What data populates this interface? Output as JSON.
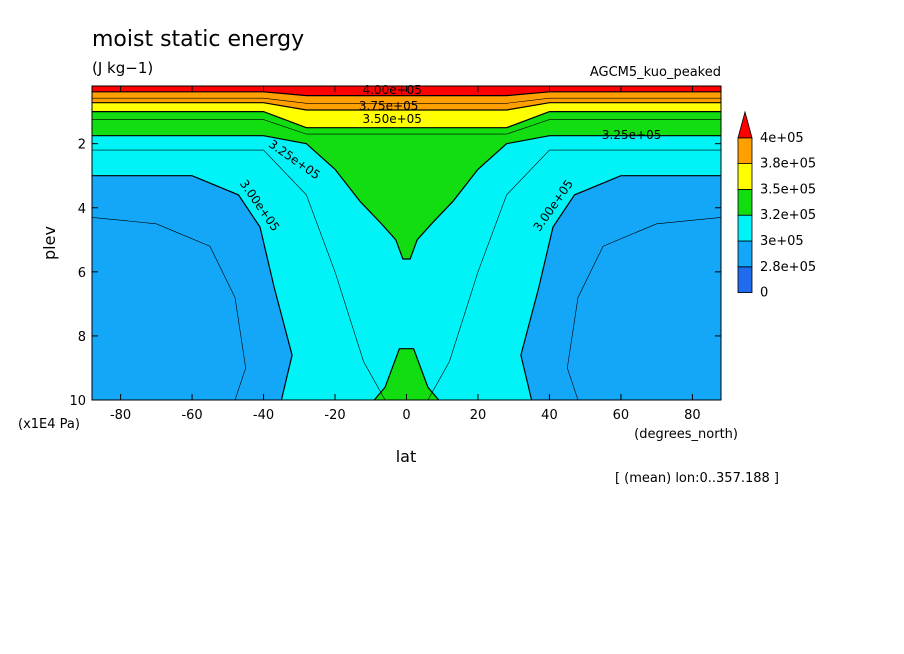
{
  "chart_data": {
    "type": "heatmap",
    "title": "moist static energy",
    "units": "(J kg−1)",
    "run_label": "AGCM5_kuo_peaked",
    "xlabel": "lat",
    "ylabel": "plev",
    "x_unit": "(degrees_north)",
    "y_unit": "(x1E4 Pa)",
    "footer": "[ (mean) lon:0..357.188 ]",
    "xlim": [
      -88,
      88
    ],
    "ylim": [
      0.2,
      10
    ],
    "y_inverted": true,
    "x_ticks": [
      "-80",
      "-60",
      "-40",
      "-20",
      "0",
      "20",
      "40",
      "60",
      "80"
    ],
    "y_ticks": [
      "2",
      "4",
      "6",
      "8",
      "10"
    ],
    "x_tick_values": [
      -80,
      -60,
      -40,
      -20,
      0,
      20,
      40,
      60,
      80
    ],
    "y_tick_values": [
      2,
      4,
      6,
      8,
      10
    ],
    "colorbar": {
      "labels": [
        "0",
        "2.8e+05",
        "3e+05",
        "3.2e+05",
        "3.5e+05",
        "3.8e+05",
        "4e+05"
      ],
      "colors": [
        "#1f6cf0",
        "#14a6f7",
        "#00f4f7",
        "#11dd11",
        "#ffff00",
        "#ff9f00",
        "#ff0000"
      ]
    },
    "regions": [
      {
        "band": "2.8e+05–3e+05",
        "color": "#14a6f7",
        "points": [
          [
            -88,
            3.0
          ],
          [
            -60,
            3.0
          ],
          [
            -47,
            3.6
          ],
          [
            -41,
            4.6
          ],
          [
            -37,
            6.5
          ],
          [
            -32,
            8.6
          ],
          [
            -35,
            10
          ]
        ],
        "close_to": "south"
      },
      {
        "band": "2.8e+05–3e+05",
        "color": "#14a6f7",
        "points": [
          [
            88,
            3.0
          ],
          [
            60,
            3.0
          ],
          [
            47,
            3.6
          ],
          [
            41,
            4.6
          ],
          [
            37,
            6.5
          ],
          [
            32,
            8.6
          ],
          [
            35,
            10
          ]
        ],
        "close_to": "north"
      },
      {
        "band": "3.2e+05–3.5e+05",
        "color": "#11dd11",
        "points": [
          [
            -88,
            1.75
          ],
          [
            -40,
            1.75
          ],
          [
            -28,
            2.0
          ],
          [
            -20,
            2.8
          ],
          [
            -13,
            3.8
          ],
          [
            -7,
            4.5
          ],
          [
            -3,
            5.0
          ],
          [
            -1,
            5.6
          ],
          [
            1,
            5.6
          ],
          [
            3,
            5.0
          ],
          [
            7,
            4.5
          ],
          [
            13,
            3.8
          ],
          [
            20,
            2.8
          ],
          [
            28,
            2.0
          ],
          [
            40,
            1.75
          ],
          [
            88,
            1.75
          ]
        ],
        "close_to": "top"
      },
      {
        "band": "3.2e+05–3.5e+05",
        "color": "#11dd11",
        "points": [
          [
            -9,
            10
          ],
          [
            -6,
            9.6
          ],
          [
            -2,
            8.4
          ],
          [
            2,
            8.4
          ],
          [
            6,
            9.6
          ],
          [
            9,
            10
          ]
        ],
        "close_to": "none"
      },
      {
        "band": "3.5e+05–3.8e+05",
        "color": "#ffff00",
        "points": [
          [
            -88,
            1.0
          ],
          [
            -40,
            1.0
          ],
          [
            -28,
            1.5
          ],
          [
            28,
            1.5
          ],
          [
            40,
            1.0
          ],
          [
            88,
            1.0
          ]
        ],
        "close_to": "top"
      },
      {
        "band": "3.8e+05–4e+05",
        "color": "#ff9f00",
        "points": [
          [
            -88,
            0.72
          ],
          [
            -40,
            0.72
          ],
          [
            -28,
            0.95
          ],
          [
            28,
            0.95
          ],
          [
            40,
            0.72
          ],
          [
            88,
            0.72
          ]
        ],
        "close_to": "top"
      },
      {
        "band": ">4e+05",
        "color": "#ff0000",
        "points": [
          [
            -88,
            0.38
          ],
          [
            -40,
            0.38
          ],
          [
            -28,
            0.5
          ],
          [
            28,
            0.5
          ],
          [
            40,
            0.38
          ],
          [
            88,
            0.38
          ]
        ],
        "close_to": "top"
      }
    ],
    "contour_labels": [
      {
        "text": "4.00e+05",
        "x": -4,
        "y": 0.45,
        "angle": 0
      },
      {
        "text": "3.75e+05",
        "x": -5,
        "y": 0.95,
        "angle": 0
      },
      {
        "text": "3.50e+05",
        "x": -4,
        "y": 1.35,
        "angle": 0
      },
      {
        "text": "3.25e+05",
        "x": 63,
        "y": 1.85,
        "angle": 0
      },
      {
        "text": "3.25e+05",
        "x": -32,
        "y": 2.6,
        "angle": 35
      },
      {
        "text": "3.00e+05",
        "x": -42,
        "y": 4.0,
        "angle": 55
      },
      {
        "text": "3.00e+05",
        "x": 42,
        "y": 4.0,
        "angle": -55
      }
    ]
  }
}
